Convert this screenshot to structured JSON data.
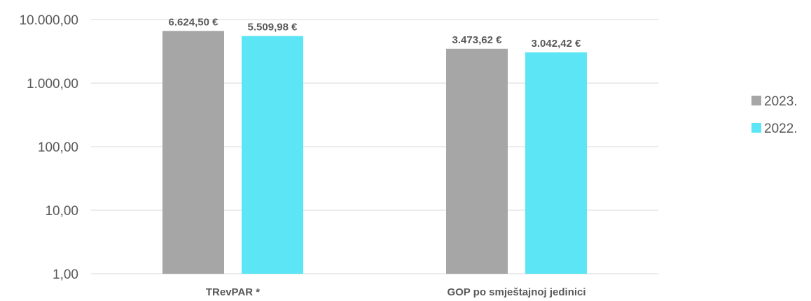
{
  "chart_data": {
    "type": "bar",
    "scale": "log",
    "ylim": [
      1,
      10000
    ],
    "y_ticks": [
      {
        "value": 1,
        "label": "1,00"
      },
      {
        "value": 10,
        "label": "10,00"
      },
      {
        "value": 100,
        "label": "100,00"
      },
      {
        "value": 1000,
        "label": "1.000,00"
      },
      {
        "value": 10000,
        "label": "10.000,00"
      }
    ],
    "categories": [
      "TRevPAR *",
      "GOP po smještajnoj jedinici"
    ],
    "series": [
      {
        "name": "2023.",
        "color": "#a6a6a6",
        "values": [
          6624.5,
          3473.62
        ],
        "labels": [
          "6.624,50 €",
          "3.473,62 €"
        ]
      },
      {
        "name": "2022.",
        "color": "#5ce5f5",
        "values": [
          5509.98,
          3042.42
        ],
        "labels": [
          "5.509,98 €",
          "3.042,42 €"
        ]
      }
    ],
    "grid": true,
    "legend_position": "right"
  }
}
